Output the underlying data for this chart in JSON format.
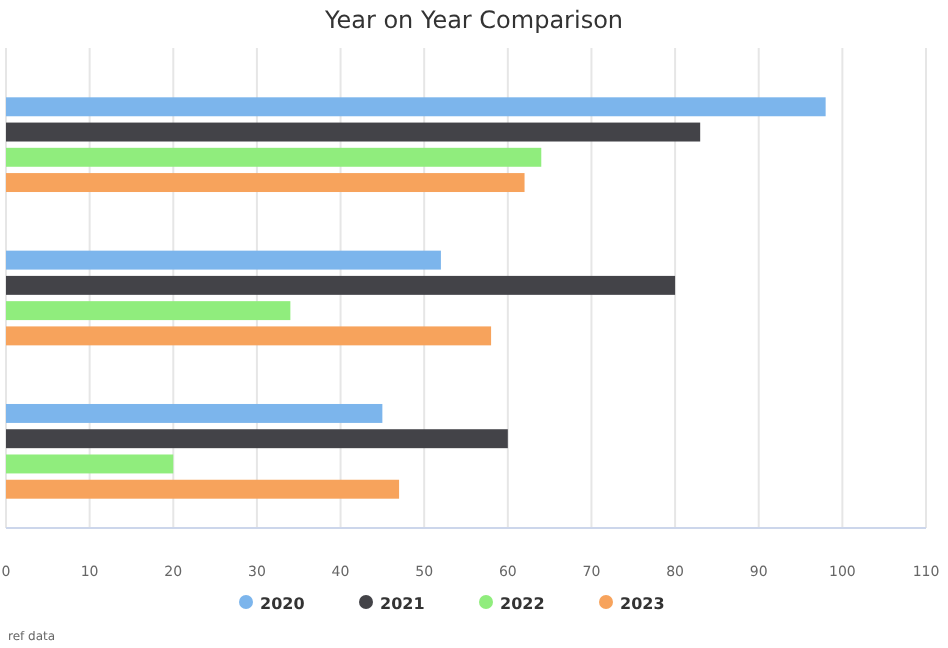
{
  "chart_data": {
    "type": "bar",
    "orientation": "horizontal",
    "title": "Year on Year Comparison",
    "categories": [
      null,
      null,
      null
    ],
    "series": [
      {
        "name": "2020",
        "color": "#7cb5ec",
        "values": [
          98,
          52,
          45
        ]
      },
      {
        "name": "2021",
        "color": "#434348",
        "values": [
          83,
          80,
          60
        ]
      },
      {
        "name": "2022",
        "color": "#90ed7d",
        "values": [
          64,
          34,
          20
        ]
      },
      {
        "name": "2023",
        "color": "#f7a35c",
        "values": [
          62,
          58,
          47
        ]
      }
    ],
    "xlim": [
      0,
      110
    ],
    "xticks": [
      0,
      10,
      20,
      30,
      40,
      50,
      60,
      70,
      80,
      90,
      100,
      110
    ],
    "grid": "x",
    "legend": "bottom",
    "annotations": [
      "ref data"
    ]
  }
}
